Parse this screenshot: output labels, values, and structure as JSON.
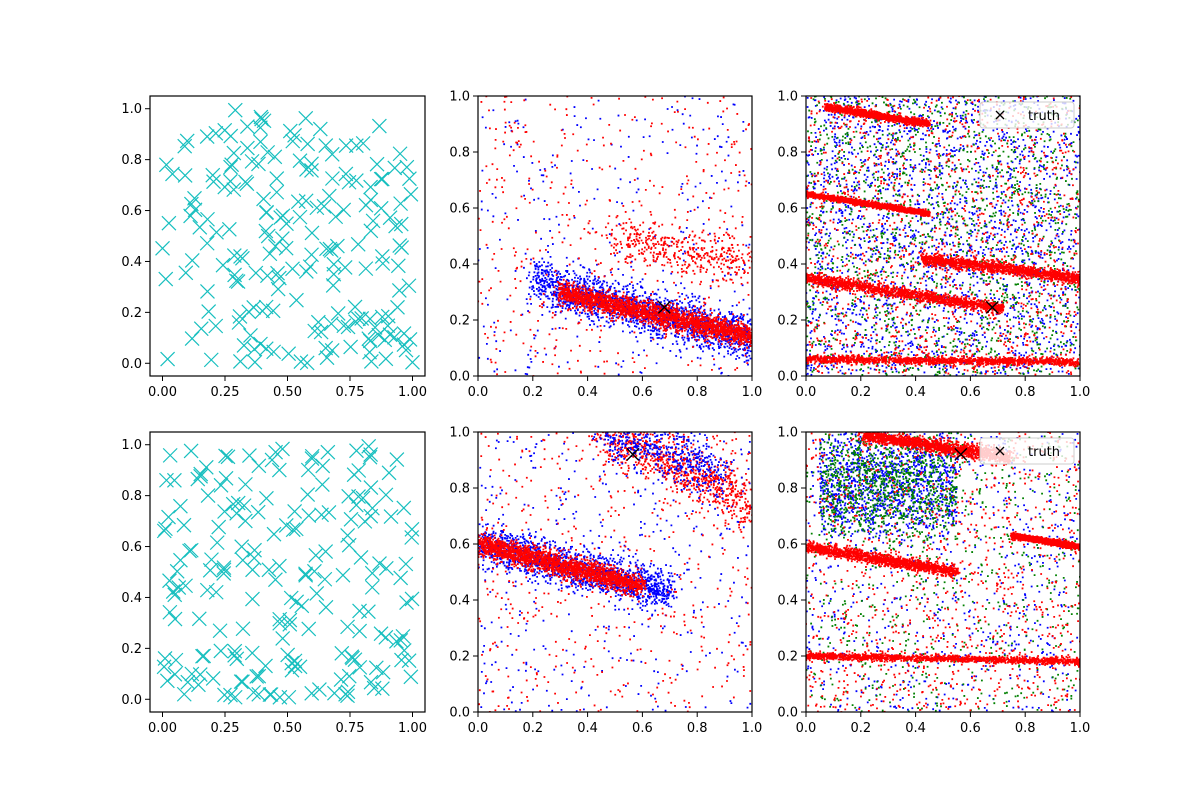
{
  "figure": {
    "rows": 2,
    "cols": 3
  },
  "chart_data": [
    {
      "type": "scatter",
      "panel": "top-left",
      "xlim": [
        -0.05,
        1.05
      ],
      "ylim": [
        -0.05,
        1.05
      ],
      "xticks": [
        "0.00",
        "0.25",
        "0.50",
        "0.75",
        "1.00"
      ],
      "yticks": [
        "0.0",
        "0.2",
        "0.4",
        "0.6",
        "0.8",
        "1.0"
      ],
      "grid": false,
      "series": [
        {
          "marker": "x-large",
          "color": "#17bfbf",
          "count": 200,
          "distribution": "uniform-random"
        }
      ]
    },
    {
      "type": "scatter",
      "panel": "top-middle",
      "xlim": [
        0,
        1
      ],
      "ylim": [
        0,
        1
      ],
      "xticks": [
        "0.0",
        "0.2",
        "0.4",
        "0.6",
        "0.8",
        "1.0"
      ],
      "yticks": [
        "0.0",
        "0.2",
        "0.4",
        "0.6",
        "0.8",
        "1.0"
      ],
      "grid": false,
      "marker_point": {
        "x": 0.68,
        "y": 0.245,
        "marker": "x",
        "color": "#000000"
      },
      "series": [
        {
          "color": "#0000ff",
          "description": "dense band",
          "line": {
            "x0": 0.2,
            "y0": 0.34,
            "x1": 1.0,
            "y1": 0.13
          },
          "spread": 0.04,
          "count": 1800
        },
        {
          "color": "#ff0000",
          "description": "dense band",
          "line": {
            "x0": 0.3,
            "y0": 0.3,
            "x1": 1.0,
            "y1": 0.14
          },
          "spread": 0.02,
          "count": 2200
        },
        {
          "color": "#ff0000",
          "description": "secondary band",
          "line": {
            "x0": 0.5,
            "y0": 0.5,
            "x1": 1.0,
            "y1": 0.4
          },
          "spread": 0.04,
          "count": 400
        }
      ]
    },
    {
      "type": "scatter",
      "panel": "top-right",
      "xlim": [
        0,
        1
      ],
      "ylim": [
        0,
        1
      ],
      "xticks": [
        "0.0",
        "0.2",
        "0.4",
        "0.6",
        "0.8",
        "1.0"
      ],
      "yticks": [
        "0.0",
        "0.2",
        "0.4",
        "0.6",
        "0.8",
        "1.0"
      ],
      "grid": false,
      "legend": {
        "label": "truth",
        "marker": "x",
        "placement": "top-right"
      },
      "marker_point": {
        "x": 0.68,
        "y": 0.245,
        "marker": "x",
        "color": "#000000"
      },
      "series": [
        {
          "color": "#0000ff",
          "description": "diffuse cloud",
          "count": 2200
        },
        {
          "color": "#008000",
          "description": "diffuse cloud",
          "count": 1600
        },
        {
          "color": "#ff0000",
          "line": {
            "x0": 0.0,
            "y0": 0.35,
            "x1": 0.72,
            "y1": 0.24
          },
          "spread": 0.01
        },
        {
          "color": "#ff0000",
          "line": {
            "x0": 0.42,
            "y0": 0.42,
            "x1": 1.0,
            "y1": 0.35
          },
          "spread": 0.01
        },
        {
          "color": "#ff0000",
          "line": {
            "x0": 0.0,
            "y0": 0.06,
            "x1": 1.0,
            "y1": 0.05
          },
          "spread": 0.007
        },
        {
          "color": "#ff0000",
          "line": {
            "x0": 0.07,
            "y0": 0.96,
            "x1": 0.45,
            "y1": 0.9
          },
          "spread": 0.006
        },
        {
          "color": "#ff0000",
          "line": {
            "x0": 0.0,
            "y0": 0.65,
            "x1": 0.45,
            "y1": 0.58
          },
          "spread": 0.005
        }
      ]
    },
    {
      "type": "scatter",
      "panel": "bottom-left",
      "xlim": [
        -0.05,
        1.05
      ],
      "ylim": [
        -0.05,
        1.05
      ],
      "xticks": [
        "0.00",
        "0.25",
        "0.50",
        "0.75",
        "1.00"
      ],
      "yticks": [
        "0.0",
        "0.2",
        "0.4",
        "0.6",
        "0.8",
        "1.0"
      ],
      "grid": false,
      "series": [
        {
          "marker": "x-large",
          "color": "#17bfbf",
          "count": 200,
          "distribution": "uniform-random"
        }
      ]
    },
    {
      "type": "scatter",
      "panel": "bottom-middle",
      "xlim": [
        0,
        1
      ],
      "ylim": [
        0,
        1
      ],
      "xticks": [
        "0.0",
        "0.2",
        "0.4",
        "0.6",
        "0.8",
        "1.0"
      ],
      "yticks": [
        "0.0",
        "0.2",
        "0.4",
        "0.6",
        "0.8",
        "1.0"
      ],
      "grid": false,
      "marker_point": {
        "x": 0.565,
        "y": 0.92,
        "marker": "x",
        "color": "#000000"
      },
      "series": [
        {
          "color": "#0000ff",
          "description": "dense band",
          "line": {
            "x0": 0.0,
            "y0": 0.6,
            "x1": 0.7,
            "y1": 0.43
          },
          "spread": 0.035,
          "count": 1600
        },
        {
          "color": "#ff0000",
          "description": "dense band",
          "line": {
            "x0": 0.0,
            "y0": 0.6,
            "x1": 0.6,
            "y1": 0.45
          },
          "spread": 0.02,
          "count": 2000
        },
        {
          "color": "#ff0000",
          "description": "upper band",
          "line": {
            "x0": 0.45,
            "y0": 1.0,
            "x1": 1.0,
            "y1": 0.75
          },
          "spread": 0.05,
          "count": 800
        },
        {
          "color": "#0000ff",
          "description": "upper band",
          "line": {
            "x0": 0.45,
            "y0": 1.0,
            "x1": 0.9,
            "y1": 0.85
          },
          "spread": 0.05,
          "count": 500
        }
      ]
    },
    {
      "type": "scatter",
      "panel": "bottom-right",
      "xlim": [
        0,
        1
      ],
      "ylim": [
        0,
        1
      ],
      "xticks": [
        "0.0",
        "0.2",
        "0.4",
        "0.6",
        "0.8",
        "1.0"
      ],
      "yticks": [
        "0.0",
        "0.2",
        "0.4",
        "0.6",
        "0.8",
        "1.0"
      ],
      "grid": false,
      "legend": {
        "label": "truth",
        "marker": "x",
        "placement": "top-right"
      },
      "marker_point": {
        "x": 0.565,
        "y": 0.92,
        "marker": "x",
        "color": "#000000"
      },
      "series": [
        {
          "color": "#0000ff",
          "description": "dense cluster",
          "count": 1800
        },
        {
          "color": "#008000",
          "description": "dense cluster",
          "count": 1600
        },
        {
          "color": "#ff0000",
          "line": {
            "x0": 0.0,
            "y0": 0.59,
            "x1": 0.55,
            "y1": 0.5
          },
          "spread": 0.01
        },
        {
          "color": "#ff0000",
          "line": {
            "x0": 0.2,
            "y0": 0.99,
            "x1": 0.75,
            "y1": 0.91
          },
          "spread": 0.012
        },
        {
          "color": "#ff0000",
          "line": {
            "x0": 0.0,
            "y0": 0.2,
            "x1": 1.0,
            "y1": 0.18
          },
          "spread": 0.006
        },
        {
          "color": "#ff0000",
          "line": {
            "x0": 0.75,
            "y0": 0.63,
            "x1": 1.0,
            "y1": 0.59
          },
          "spread": 0.005
        }
      ]
    }
  ]
}
